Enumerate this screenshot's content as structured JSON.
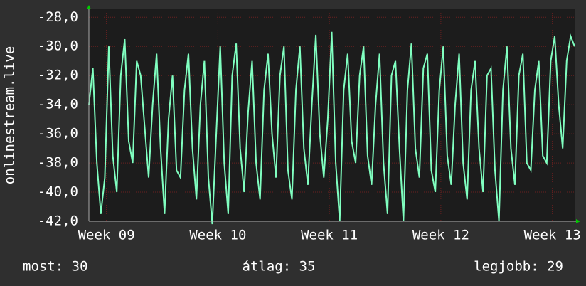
{
  "chart_data": {
    "type": "line",
    "y_label": "onlinestream.live",
    "color": "#80ffc0",
    "grid": true,
    "ylim": [
      -42,
      -27.4
    ],
    "yticks": [
      {
        "value": -42,
        "label": "-42,0"
      },
      {
        "value": -40,
        "label": "-40,0"
      },
      {
        "value": -38,
        "label": "-38,0"
      },
      {
        "value": -36,
        "label": "-36,0"
      },
      {
        "value": -34,
        "label": "-34,0"
      },
      {
        "value": -32,
        "label": "-32,0"
      },
      {
        "value": -30,
        "label": "-30,0"
      },
      {
        "value": -28,
        "label": "-28,0"
      }
    ],
    "xlim": [
      0,
      30.5
    ],
    "xticks": [
      {
        "value": 1.1,
        "label": "Week 09"
      },
      {
        "value": 8.1,
        "label": "Week 10"
      },
      {
        "value": 15.1,
        "label": "Week 11"
      },
      {
        "value": 22.1,
        "label": "Week 12"
      },
      {
        "value": 29.1,
        "label": "Week 13"
      }
    ],
    "x": [
      0,
      0.25,
      0.5,
      0.75,
      1,
      1.25,
      1.5,
      1.75,
      2,
      2.25,
      2.5,
      2.75,
      3,
      3.25,
      3.5,
      3.75,
      4,
      4.25,
      4.5,
      4.75,
      5,
      5.25,
      5.5,
      5.75,
      6,
      6.25,
      6.5,
      6.75,
      7,
      7.25,
      7.5,
      7.75,
      8,
      8.25,
      8.5,
      8.75,
      9,
      9.25,
      9.5,
      9.75,
      10,
      10.25,
      10.5,
      10.75,
      11,
      11.25,
      11.5,
      11.75,
      12,
      12.25,
      12.5,
      12.75,
      13,
      13.25,
      13.5,
      13.75,
      14,
      14.25,
      14.5,
      14.75,
      15,
      15.25,
      15.5,
      15.75,
      16,
      16.25,
      16.5,
      16.75,
      17,
      17.25,
      17.5,
      17.75,
      18,
      18.25,
      18.5,
      18.75,
      19,
      19.25,
      19.5,
      19.75,
      20,
      20.25,
      20.5,
      20.75,
      21,
      21.25,
      21.5,
      21.75,
      22,
      22.25,
      22.5,
      22.75,
      23,
      23.25,
      23.5,
      23.75,
      24,
      24.25,
      24.5,
      24.75,
      25,
      25.25,
      25.5,
      25.75,
      26,
      26.25,
      26.5,
      26.75,
      27,
      27.25,
      27.5,
      27.75,
      28,
      28.25,
      28.5,
      28.75,
      29,
      29.25,
      29.5,
      29.75,
      30,
      30.25,
      30.5
    ],
    "values": [
      -34,
      -31.5,
      -38,
      -41.5,
      -39,
      -30,
      -37.5,
      -40,
      -32,
      -29.5,
      -36.5,
      -38,
      -31,
      -32,
      -35.5,
      -39,
      -34,
      -30.5,
      -37,
      -41.5,
      -35,
      -32,
      -38.5,
      -39,
      -33,
      -30.5,
      -37,
      -40.5,
      -34,
      -31,
      -39,
      -42.2,
      -36,
      -30,
      -38,
      -41.5,
      -32,
      -29.8,
      -37,
      -40,
      -34.5,
      -31,
      -38,
      -40.5,
      -33,
      -30.5,
      -36,
      -39,
      -32,
      -30,
      -38.5,
      -40.5,
      -33,
      -30,
      -37,
      -39.5,
      -34,
      -29.2,
      -36,
      -39,
      -35,
      -29,
      -38,
      -42,
      -33,
      -30.5,
      -36.5,
      -38,
      -32,
      -30,
      -37.5,
      -39.5,
      -34,
      -30.5,
      -38,
      -41.5,
      -32,
      -31,
      -37,
      -42,
      -33,
      -29.8,
      -37,
      -39,
      -31.5,
      -30.5,
      -38.5,
      -40,
      -33,
      -30,
      -37.5,
      -39.5,
      -34,
      -30.5,
      -38,
      -40.5,
      -33,
      -31,
      -37,
      -40,
      -32,
      -31.5,
      -38.5,
      -42,
      -33,
      -30,
      -37,
      -39.5,
      -32,
      -30.5,
      -38,
      -38.5,
      -33,
      -31,
      -37.5,
      -38,
      -31,
      -29.3,
      -34,
      -37,
      -31,
      -29.3,
      -30
    ],
    "stats": [
      "most: 30",
      "átlag: 35",
      "legjobb: 29"
    ]
  }
}
